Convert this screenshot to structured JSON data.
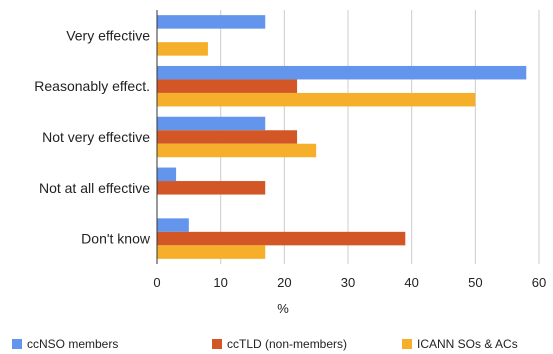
{
  "chart_data": {
    "type": "bar",
    "orientation": "horizontal",
    "categories": [
      "Very effective",
      "Reasonably effect.",
      "Not very effective",
      "Not at all effective",
      "Don't know"
    ],
    "series": [
      {
        "name": "ccNSO members",
        "color": "#6495ED",
        "values": [
          17,
          58,
          17,
          3,
          5
        ]
      },
      {
        "name": "ccTLD (non-members)",
        "color": "#D35626",
        "values": [
          0,
          22,
          22,
          17,
          39
        ]
      },
      {
        "name": "ICANN SOs & ACs",
        "color": "#F5AF2B",
        "values": [
          8,
          50,
          25,
          0,
          17
        ]
      }
    ],
    "xlabel": "%",
    "ylabel": "",
    "xlim": [
      0,
      60
    ],
    "xticks": [
      0,
      10,
      20,
      30,
      40,
      50,
      60
    ],
    "grid": true,
    "legend": "bottom"
  }
}
